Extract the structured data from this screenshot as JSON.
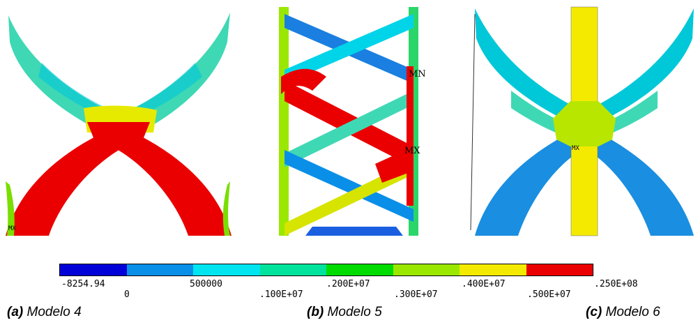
{
  "panels": {
    "a": {
      "marker": "MX"
    },
    "b": {
      "marker_min": "MN",
      "marker_max": "MX"
    },
    "c": {
      "marker": "MX"
    }
  },
  "legend": {
    "colors": [
      "#0000d8",
      "#0a8fe8",
      "#00e5ef",
      "#00e39d",
      "#00db00",
      "#9ae800",
      "#f4ea00",
      "#ea0000"
    ],
    "upper_labels": [
      "-8254.94",
      "500000",
      ".200E+07",
      ".400E+07",
      ".250E+08"
    ],
    "lower_labels": [
      "0",
      ".100E+07",
      ".300E+07",
      ".500E+07"
    ]
  },
  "captions": [
    {
      "letter": "(a)",
      "text": " Modelo 4"
    },
    {
      "letter": "(b)",
      "text": " Modelo 5"
    },
    {
      "letter": "(c)",
      "text": " Modelo 6"
    }
  ]
}
